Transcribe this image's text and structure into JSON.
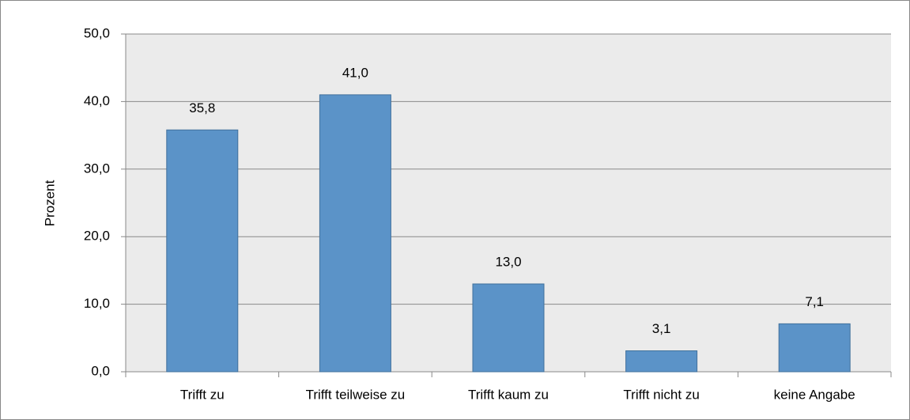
{
  "chart_data": {
    "type": "bar",
    "y_label": "Prozent",
    "categories": [
      "Trifft zu",
      "Trifft teilweise zu",
      "Trifft kaum zu",
      "Trifft nicht zu",
      "keine Angabe"
    ],
    "values": [
      35.8,
      41.0,
      13.0,
      3.1,
      7.1
    ],
    "value_labels": [
      "35,8",
      "41,0",
      "13,0",
      "3,1",
      "7,1"
    ],
    "color": "#5b93c8",
    "ylim": [
      0,
      50
    ],
    "yticks": [
      {
        "value": 0,
        "label": "0,0"
      },
      {
        "value": 10,
        "label": "10,0"
      },
      {
        "value": 20,
        "label": "20,0"
      },
      {
        "value": 30,
        "label": "30,0"
      },
      {
        "value": 40,
        "label": "40,0"
      },
      {
        "value": 50,
        "label": "50,0"
      }
    ],
    "grid": true
  }
}
